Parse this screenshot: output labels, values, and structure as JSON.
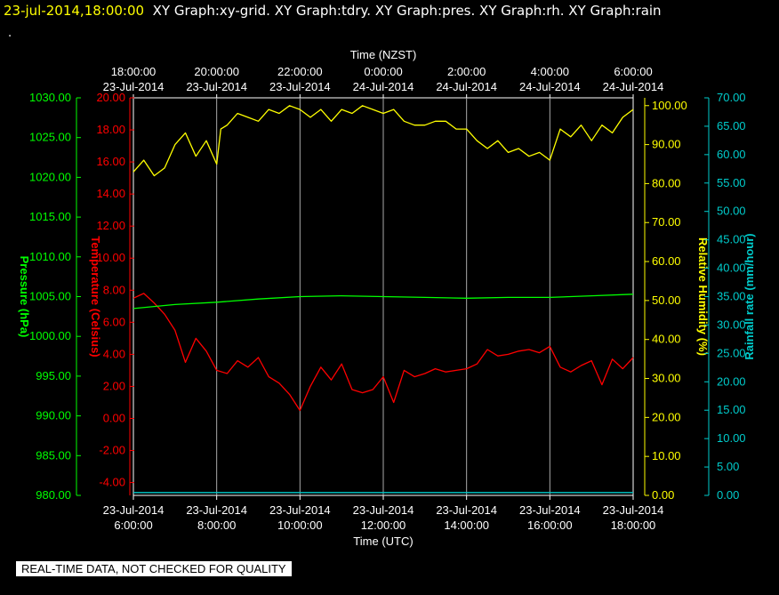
{
  "header": {
    "datetime": "23-jul-2014,18:00:00",
    "titles": "XY Graph:xy-grid.  XY Graph:tdry.  XY Graph:pres.  XY Graph:rh.  XY Graph:rain",
    "continuation": "."
  },
  "notice": "REAL-TIME DATA, NOT CHECKED FOR QUALITY",
  "colors": {
    "pressure": "#00ff00",
    "temperature": "#ff0000",
    "humidity": "#ffff00",
    "rain": "#00cccc",
    "grid": "#aaaaaa",
    "text": "#ffffff"
  },
  "chart_data": {
    "type": "line",
    "x_axis_bottom": {
      "label": "Time (UTC)",
      "range_hours": [
        6,
        18
      ],
      "ticks": [
        {
          "h": 6,
          "date": "23-Jul-2014",
          "time": "6:00:00"
        },
        {
          "h": 8,
          "date": "23-Jul-2014",
          "time": "8:00:00"
        },
        {
          "h": 10,
          "date": "23-Jul-2014",
          "time": "10:00:00"
        },
        {
          "h": 12,
          "date": "23-Jul-2014",
          "time": "12:00:00"
        },
        {
          "h": 14,
          "date": "23-Jul-2014",
          "time": "14:00:00"
        },
        {
          "h": 16,
          "date": "23-Jul-2014",
          "time": "16:00:00"
        },
        {
          "h": 18,
          "date": "23-Jul-2014",
          "time": "18:00:00"
        }
      ]
    },
    "x_axis_top": {
      "label": "Time (NZST)",
      "ticks": [
        {
          "h": 6,
          "time": "18:00:00",
          "date": "23-Jul-2014"
        },
        {
          "h": 8,
          "time": "20:00:00",
          "date": "23-Jul-2014"
        },
        {
          "h": 10,
          "time": "22:00:00",
          "date": "23-Jul-2014"
        },
        {
          "h": 12,
          "time": "0:00:00",
          "date": "24-Jul-2014"
        },
        {
          "h": 14,
          "time": "2:00:00",
          "date": "24-Jul-2014"
        },
        {
          "h": 16,
          "time": "4:00:00",
          "date": "24-Jul-2014"
        },
        {
          "h": 18,
          "time": "6:00:00",
          "date": "24-Jul-2014"
        }
      ]
    },
    "grid_hours": [
      8,
      10,
      12,
      14,
      16
    ],
    "axes": {
      "pressure": {
        "label": "Pressure (hPa)",
        "range": [
          980,
          1030
        ],
        "ticks": [
          "980.00",
          "985.00",
          "990.00",
          "995.00",
          "1000.00",
          "1005.00",
          "1010.00",
          "1015.00",
          "1020.00",
          "1025.00",
          "1030.00"
        ]
      },
      "temperature": {
        "label": "Temperature (Celsius)",
        "range": [
          -4.8,
          20
        ],
        "ticks": [
          "-4.00",
          "-2.00",
          "0.00",
          "2.00",
          "4.00",
          "6.00",
          "8.00",
          "10.00",
          "12.00",
          "14.00",
          "16.00",
          "18.00",
          "20.00"
        ]
      },
      "humidity": {
        "label": "Relative Humidity (%)",
        "range": [
          0,
          102
        ],
        "ticks": [
          "0.00",
          "10.00",
          "20.00",
          "30.00",
          "40.00",
          "50.00",
          "60.00",
          "70.00",
          "80.00",
          "90.00",
          "100.00"
        ]
      },
      "rain": {
        "label": "Rainfall rate (mm/hour)",
        "range": [
          0,
          70
        ],
        "ticks": [
          "0.00",
          "5.00",
          "10.00",
          "15.00",
          "20.00",
          "25.00",
          "30.00",
          "35.00",
          "40.00",
          "45.00",
          "50.00",
          "55.00",
          "60.00",
          "65.00",
          "70.00"
        ]
      }
    },
    "series": [
      {
        "key": "humidity",
        "x": [
          6,
          6.25,
          6.5,
          6.75,
          7,
          7.25,
          7.5,
          7.75,
          8,
          8.1,
          8.25,
          8.5,
          8.75,
          9,
          9.25,
          9.5,
          9.75,
          10,
          10.25,
          10.5,
          10.75,
          11,
          11.25,
          11.5,
          11.75,
          12,
          12.25,
          12.5,
          12.75,
          13,
          13.25,
          13.5,
          13.75,
          14,
          14.25,
          14.5,
          14.75,
          15,
          15.25,
          15.5,
          15.75,
          16,
          16.25,
          16.5,
          16.75,
          17,
          17.25,
          17.5,
          17.75,
          18
        ],
        "y": [
          83,
          86,
          82,
          84,
          90,
          93,
          87,
          91,
          85,
          94,
          95,
          98,
          97,
          96,
          99,
          98,
          100,
          99,
          97,
          99,
          96,
          99,
          98,
          100,
          99,
          98,
          99,
          96,
          95,
          95,
          96,
          96,
          94,
          94,
          91,
          89,
          91,
          88,
          89,
          87,
          88,
          86,
          94,
          92,
          95,
          91,
          95,
          93,
          97,
          99
        ]
      },
      {
        "key": "temperature",
        "x": [
          6,
          6.25,
          6.5,
          6.75,
          7,
          7.25,
          7.5,
          7.75,
          8,
          8.25,
          8.5,
          8.75,
          9,
          9.25,
          9.5,
          9.75,
          10,
          10.25,
          10.5,
          10.75,
          11,
          11.25,
          11.5,
          11.75,
          12,
          12.25,
          12.5,
          12.75,
          13,
          13.25,
          13.5,
          13.75,
          14,
          14.25,
          14.5,
          14.75,
          15,
          15.25,
          15.5,
          15.75,
          16,
          16.25,
          16.5,
          16.75,
          17,
          17.25,
          17.5,
          17.75,
          18
        ],
        "y": [
          7.5,
          7.8,
          7.2,
          6.5,
          5.5,
          3.5,
          5.0,
          4.2,
          3.0,
          2.8,
          3.6,
          3.2,
          3.8,
          2.6,
          2.2,
          1.5,
          0.5,
          2.0,
          3.2,
          2.4,
          3.4,
          1.8,
          1.6,
          1.8,
          2.6,
          1.0,
          3.0,
          2.6,
          2.8,
          3.1,
          2.9,
          3.0,
          3.1,
          3.4,
          4.3,
          3.9,
          4.0,
          4.2,
          4.3,
          4.1,
          4.5,
          3.2,
          2.9,
          3.3,
          3.6,
          2.1,
          3.7,
          3.1,
          3.8
        ]
      },
      {
        "key": "pressure",
        "x": [
          6,
          7,
          8,
          9,
          10,
          11,
          12,
          13,
          14,
          15,
          16,
          17,
          18
        ],
        "y": [
          1003.5,
          1004.0,
          1004.3,
          1004.7,
          1005.0,
          1005.1,
          1005.0,
          1004.9,
          1004.8,
          1004.9,
          1004.9,
          1005.1,
          1005.3
        ]
      },
      {
        "key": "rain",
        "x": [
          6,
          18
        ],
        "y": [
          0.5,
          0.5
        ]
      }
    ]
  }
}
